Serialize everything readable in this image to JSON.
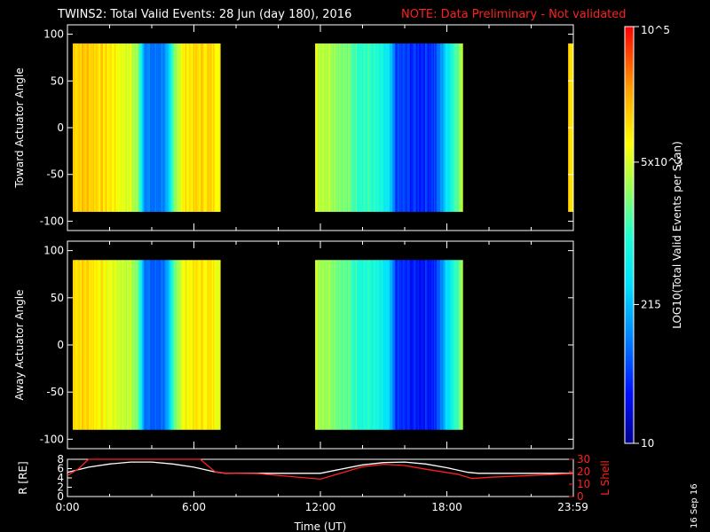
{
  "title": {
    "main": "TWINS2: Total Valid Events: 28 Jun (day 180), 2016",
    "note": "NOTE: Data Preliminary - Not validated",
    "note_color": "#ff2020"
  },
  "stamp": "16 Sep 16",
  "chart_data": [
    {
      "type": "heatmap",
      "ylabel": "Toward Actuator Angle",
      "ylim": [
        -110,
        110
      ],
      "yticks": [
        100,
        50,
        0,
        -50,
        -100
      ],
      "y_extent": [
        -90,
        90
      ],
      "x_range_hours": [
        0,
        24
      ],
      "data_blocks_hours": [
        [
          0.25,
          7.25
        ],
        [
          11.75,
          18.75
        ],
        [
          23.75,
          24
        ]
      ],
      "log10_counts_profile": [
        [
          0.25,
          4.15
        ],
        [
          1.0,
          4.2
        ],
        [
          2.0,
          4.0
        ],
        [
          3.0,
          3.7
        ],
        [
          3.4,
          3.3
        ],
        [
          3.7,
          2.0
        ],
        [
          4.2,
          1.9
        ],
        [
          4.8,
          2.2
        ],
        [
          5.1,
          3.5
        ],
        [
          5.6,
          4.0
        ],
        [
          6.5,
          4.1
        ],
        [
          7.25,
          4.0
        ],
        [
          11.75,
          3.7
        ],
        [
          12.5,
          3.6
        ],
        [
          13.5,
          3.2
        ],
        [
          14.5,
          3.0
        ],
        [
          15.2,
          2.6
        ],
        [
          15.6,
          1.7
        ],
        [
          16.5,
          1.6
        ],
        [
          17.5,
          1.7
        ],
        [
          18.0,
          2.6
        ],
        [
          18.4,
          3.2
        ],
        [
          18.75,
          3.6
        ],
        [
          23.75,
          4.1
        ],
        [
          24.0,
          4.1
        ]
      ]
    },
    {
      "type": "heatmap",
      "ylabel": "Away Actuator Angle",
      "ylim": [
        -110,
        110
      ],
      "yticks": [
        100,
        50,
        0,
        -50,
        -100
      ],
      "y_extent": [
        -90,
        90
      ],
      "x_range_hours": [
        0,
        24
      ],
      "data_blocks_hours": [
        [
          0.25,
          7.25
        ],
        [
          11.75,
          18.75
        ]
      ],
      "log10_counts_profile": [
        [
          0.25,
          4.1
        ],
        [
          1.0,
          4.1
        ],
        [
          2.0,
          3.8
        ],
        [
          3.0,
          3.6
        ],
        [
          3.4,
          3.2
        ],
        [
          3.7,
          1.9
        ],
        [
          4.2,
          1.8
        ],
        [
          4.8,
          2.1
        ],
        [
          5.1,
          3.4
        ],
        [
          5.6,
          3.9
        ],
        [
          6.5,
          4.0
        ],
        [
          7.25,
          3.9
        ],
        [
          11.75,
          3.6
        ],
        [
          12.5,
          3.5
        ],
        [
          13.5,
          3.1
        ],
        [
          14.5,
          2.9
        ],
        [
          15.2,
          2.5
        ],
        [
          15.6,
          1.6
        ],
        [
          16.5,
          1.5
        ],
        [
          17.5,
          1.6
        ],
        [
          18.0,
          2.5
        ],
        [
          18.4,
          3.1
        ],
        [
          18.75,
          3.5
        ]
      ]
    },
    {
      "type": "line",
      "ylabel": "R [RE]",
      "y2label": "L Shell",
      "ylim": [
        0,
        8
      ],
      "yticks": [
        8,
        6,
        4,
        2,
        0
      ],
      "y2lim": [
        0,
        30
      ],
      "y2ticks": [
        30,
        20,
        10,
        0
      ],
      "xlabel": "Time (UT)",
      "xlim_hours": [
        0,
        24
      ],
      "xticks": [
        {
          "h": 0,
          "label": "0:00"
        },
        {
          "h": 6,
          "label": "6:00"
        },
        {
          "h": 12,
          "label": "12:00"
        },
        {
          "h": 18,
          "label": "18:00"
        },
        {
          "h": 23.983,
          "label": "23:59"
        }
      ],
      "series": [
        {
          "axis": "left",
          "color": "#ffffff",
          "points": [
            [
              0,
              5.2
            ],
            [
              1,
              6.3
            ],
            [
              2,
              7.0
            ],
            [
              3,
              7.4
            ],
            [
              4,
              7.4
            ],
            [
              5,
              7.0
            ],
            [
              6,
              6.3
            ],
            [
              7,
              5.3
            ],
            [
              7.5,
              5.0
            ],
            [
              12,
              5.0
            ],
            [
              13,
              5.9
            ],
            [
              14,
              6.8
            ],
            [
              15,
              7.3
            ],
            [
              16,
              7.4
            ],
            [
              17,
              7.0
            ],
            [
              18,
              6.2
            ],
            [
              19,
              5.2
            ],
            [
              19.5,
              5.0
            ],
            [
              24,
              5.0
            ]
          ]
        },
        {
          "axis": "right",
          "color": "#ff2020",
          "points": [
            [
              0,
              17
            ],
            [
              0.5,
              22
            ],
            [
              1,
              30
            ],
            [
              6.3,
              30
            ],
            [
              7,
              20
            ],
            [
              7.5,
              18.8
            ],
            [
              9,
              18.5
            ],
            [
              12,
              14
            ],
            [
              13,
              19
            ],
            [
              14,
              24
            ],
            [
              15,
              26
            ],
            [
              16,
              25
            ],
            [
              17,
              22
            ],
            [
              18.5,
              18
            ],
            [
              19.2,
              14.5
            ],
            [
              20,
              15.5
            ],
            [
              22,
              17
            ],
            [
              24,
              18.5
            ]
          ]
        }
      ]
    },
    {
      "type": "colorbar",
      "label": "LOG10(Total Valid Events per Scan)",
      "scale": "log",
      "range": [
        10,
        100000
      ],
      "ticks": [
        {
          "value": 100000,
          "label": "10^5"
        },
        {
          "value": 5000,
          "label": "5x10^3"
        },
        {
          "value": 215,
          "label": "215"
        },
        {
          "value": 10,
          "label": "10"
        }
      ]
    }
  ]
}
